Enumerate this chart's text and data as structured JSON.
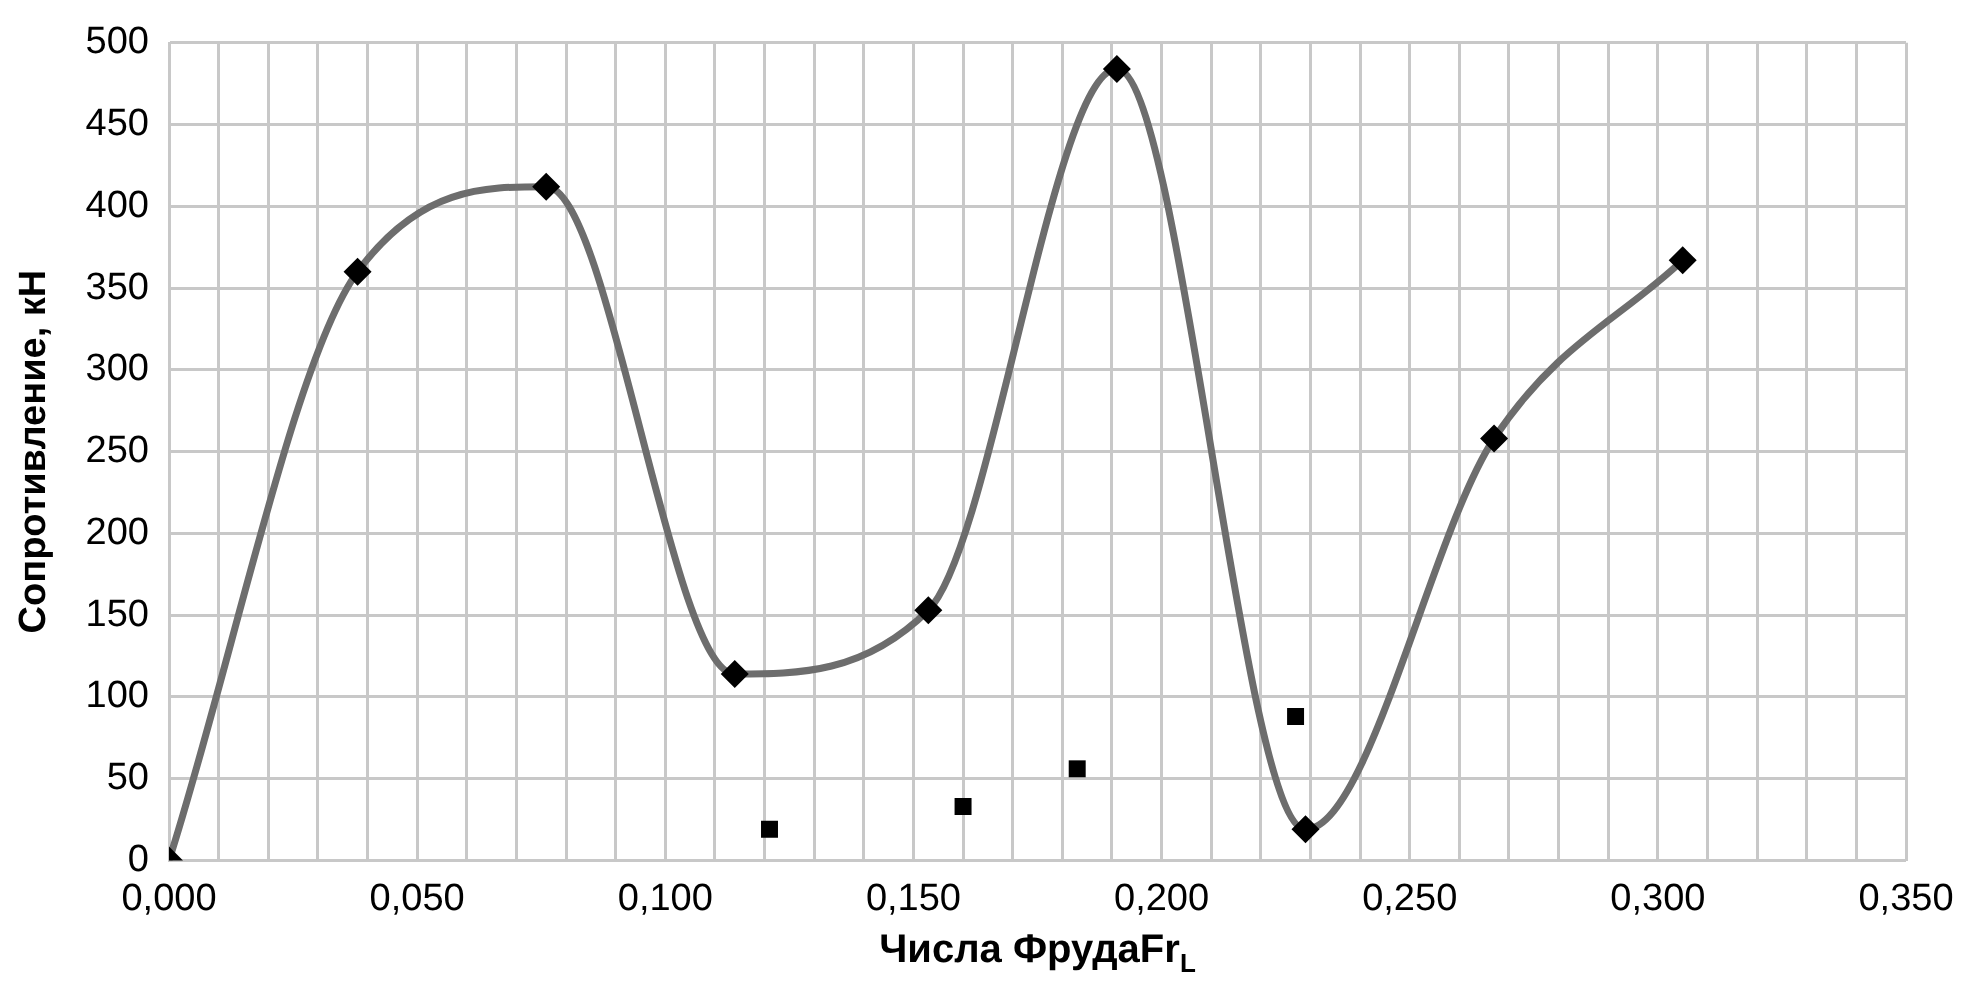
{
  "chart_data": {
    "type": "line",
    "xlabel": "Числа ФрудаFr$_{L}$",
    "ylabel": "Сопротивление, кН",
    "xlim": [
      0,
      0.35
    ],
    "xticks": [
      {
        "value": 0,
        "label": "0,000"
      },
      {
        "value": 0.01,
        "label": null
      },
      {
        "value": 0.02,
        "label": null
      },
      {
        "value": 0.03,
        "label": null
      },
      {
        "value": 0.04,
        "label": null
      },
      {
        "value": 0.05,
        "label": "0,050"
      },
      {
        "value": 0.06,
        "label": null
      },
      {
        "value": 0.07,
        "label": null
      },
      {
        "value": 0.08,
        "label": null
      },
      {
        "value": 0.09,
        "label": null
      },
      {
        "value": 0.1,
        "label": "0,100"
      },
      {
        "value": 0.11,
        "label": null
      },
      {
        "value": 0.12,
        "label": null
      },
      {
        "value": 0.13,
        "label": null
      },
      {
        "value": 0.14,
        "label": null
      },
      {
        "value": 0.15,
        "label": "0,150"
      },
      {
        "value": 0.16,
        "label": null
      },
      {
        "value": 0.17,
        "label": null
      },
      {
        "value": 0.18,
        "label": null
      },
      {
        "value": 0.19,
        "label": null
      },
      {
        "value": 0.2,
        "label": "0,200"
      },
      {
        "value": 0.21,
        "label": null
      },
      {
        "value": 0.22,
        "label": null
      },
      {
        "value": 0.23,
        "label": null
      },
      {
        "value": 0.24,
        "label": null
      },
      {
        "value": 0.25,
        "label": "0,250"
      },
      {
        "value": 0.26,
        "label": null
      },
      {
        "value": 0.27,
        "label": null
      },
      {
        "value": 0.28,
        "label": null
      },
      {
        "value": 0.29,
        "label": null
      },
      {
        "value": 0.3,
        "label": "0,300"
      },
      {
        "value": 0.31,
        "label": null
      },
      {
        "value": 0.32,
        "label": null
      },
      {
        "value": 0.33,
        "label": null
      },
      {
        "value": 0.34,
        "label": null
      },
      {
        "value": 0.35,
        "label": "0,350"
      }
    ],
    "ylim": [
      0,
      500
    ],
    "yticks": [
      0,
      50,
      100,
      150,
      200,
      250,
      300,
      350,
      400,
      450,
      500
    ],
    "grid": true,
    "legend": false,
    "series": [
      {
        "color": "#6d6d6d",
        "marker": "diamond",
        "x": [
          0,
          0.038,
          0.076,
          0.114,
          0.153,
          0.191,
          0.229,
          0.267,
          0.305
        ],
        "values": [
          0,
          360,
          412,
          114,
          153,
          484,
          19,
          258,
          367
        ]
      },
      {
        "type": "scatter",
        "color": "#000000",
        "marker": "square",
        "x": [
          0.121,
          0.16,
          0.183,
          0.227
        ],
        "values": [
          19,
          33,
          56,
          88
        ]
      }
    ]
  }
}
